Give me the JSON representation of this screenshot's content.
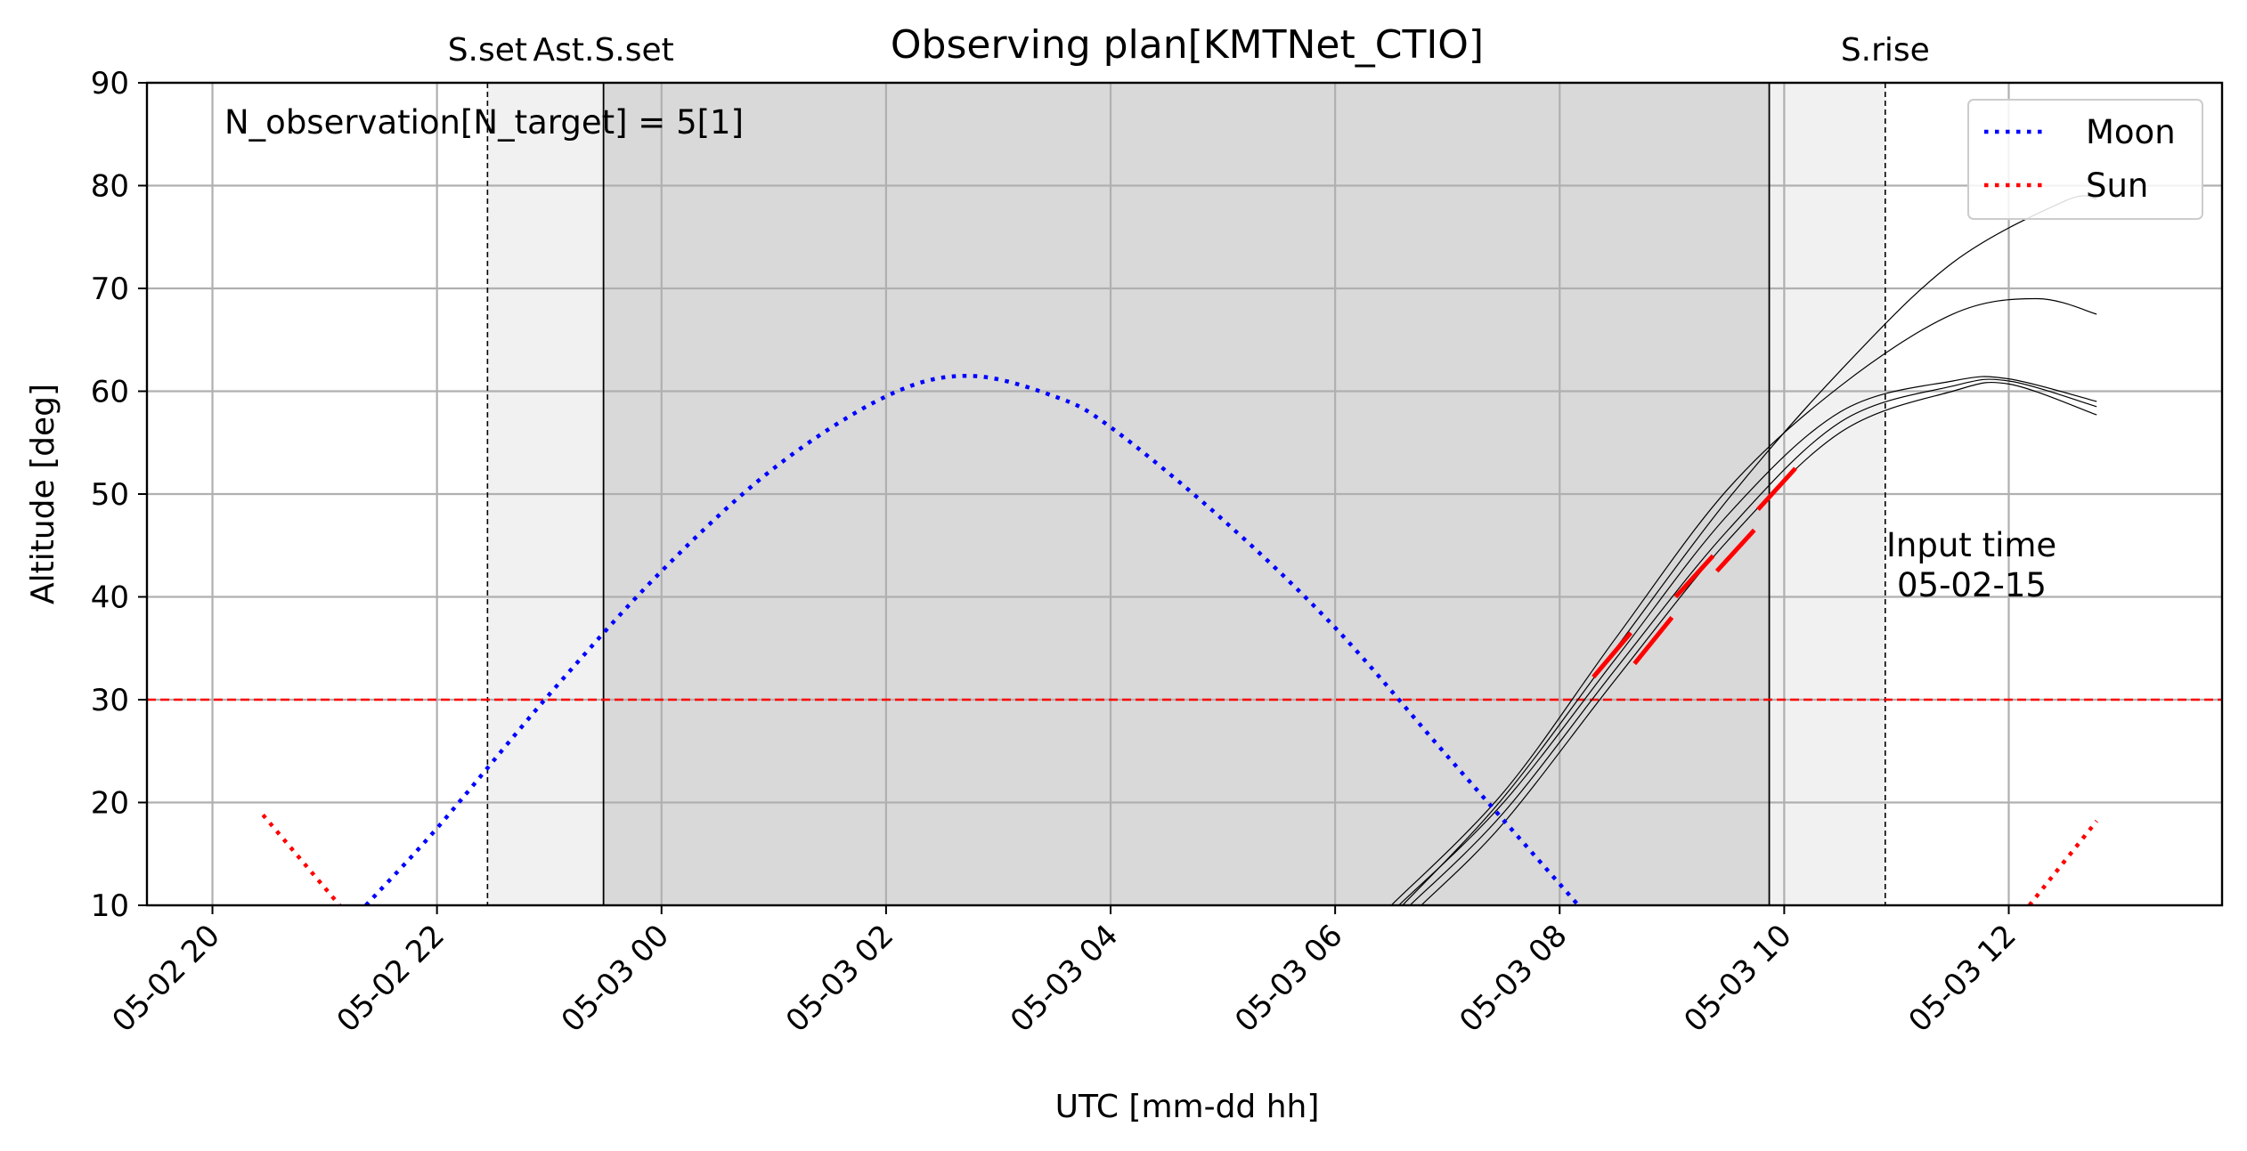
{
  "chart_data": {
    "type": "line",
    "title": "Observing plan[KMTNet_CTIO]",
    "xlabel": "UTC [mm-dd hh]",
    "ylabel": "Altitude [deg]",
    "xlim": [
      "05-02 19:25",
      "05-03 13:54"
    ],
    "ylim": [
      10,
      90
    ],
    "x_ticks": [
      {
        "time": "05-02 20:00",
        "label": "05-02 20"
      },
      {
        "time": "05-02 22:00",
        "label": "05-02 22"
      },
      {
        "time": "05-03 00:00",
        "label": "05-03 00"
      },
      {
        "time": "05-03 02:00",
        "label": "05-03 02"
      },
      {
        "time": "05-03 04:00",
        "label": "05-03 04"
      },
      {
        "time": "05-03 06:00",
        "label": "05-03 06"
      },
      {
        "time": "05-03 08:00",
        "label": "05-03 08"
      },
      {
        "time": "05-03 10:00",
        "label": "05-03 10"
      },
      {
        "time": "05-03 12:00",
        "label": "05-03 12"
      }
    ],
    "y_ticks": [
      10,
      20,
      30,
      40,
      50,
      60,
      70,
      80,
      90
    ],
    "grid": true,
    "legend_position": "top-right",
    "annotation": "N_observation[N_target] = 5[1]",
    "input_time": {
      "label": "Input time",
      "value": "05-02-15"
    },
    "events": [
      {
        "label": "S.set",
        "time": "05-02 22:27",
        "style": "dashed"
      },
      {
        "label": "Ast.S.set",
        "time": "05-02 23:29",
        "style": "solid"
      },
      {
        "label": "",
        "time": "05-03 09:52",
        "style": "solid"
      },
      {
        "label": "S.rise",
        "time": "05-03 10:54",
        "style": "dashed"
      }
    ],
    "shading": [
      {
        "from": "05-02 22:27",
        "to": "05-02 23:29",
        "tone": "light"
      },
      {
        "from": "05-02 23:29",
        "to": "05-03 09:52",
        "tone": "dark"
      },
      {
        "from": "05-03 09:52",
        "to": "05-03 10:54",
        "tone": "light"
      }
    ],
    "altitude_limit": {
      "value": 30,
      "color": "#ff0000",
      "style": "dashed"
    },
    "series": [
      {
        "name": "Moon",
        "color": "#0000ff",
        "style": "dotted",
        "points": [
          [
            "05-02 21:22",
            10
          ],
          [
            "05-02 22:00",
            17.5
          ],
          [
            "05-02 23:00",
            30.5
          ],
          [
            "05-03 00:00",
            42.5
          ],
          [
            "05-03 01:00",
            52.5
          ],
          [
            "05-03 02:00",
            59.5
          ],
          [
            "05-03 02:44",
            61.5
          ],
          [
            "05-03 03:30",
            59.5
          ],
          [
            "05-03 04:00",
            56.5
          ],
          [
            "05-03 05:00",
            47.5
          ],
          [
            "05-03 06:00",
            37
          ],
          [
            "05-03 07:00",
            24.5
          ],
          [
            "05-03 08:10",
            10
          ]
        ]
      },
      {
        "name": "Sun",
        "color": "#ff0000",
        "style": "dotted",
        "segments": [
          [
            [
              "05-02 20:27",
              18.8
            ],
            [
              "05-02 21:08",
              10
            ]
          ],
          [
            [
              "05-03 12:11",
              10
            ],
            [
              "05-03 12:47",
              18.2
            ]
          ]
        ]
      }
    ],
    "target_tracks": [
      {
        "color": "#000000",
        "points": [
          [
            "05-03 06:34",
            10
          ],
          [
            "05-03 07:30",
            20
          ],
          [
            "05-03 08:30",
            34
          ],
          [
            "05-03 09:30",
            48
          ],
          [
            "05-03 10:30",
            58
          ],
          [
            "05-03 11:30",
            61
          ],
          [
            "05-03 12:00",
            61.2
          ],
          [
            "05-03 12:47",
            59
          ]
        ]
      },
      {
        "color": "#000000",
        "points": [
          [
            "05-03 06:40",
            10
          ],
          [
            "05-03 07:30",
            19
          ],
          [
            "05-03 08:30",
            33
          ],
          [
            "05-03 09:30",
            46.5
          ],
          [
            "05-03 10:30",
            57
          ],
          [
            "05-03 11:30",
            60.5
          ],
          [
            "05-03 12:00",
            61
          ],
          [
            "05-03 12:47",
            58.5
          ]
        ]
      },
      {
        "color": "#000000",
        "points": [
          [
            "05-03 06:46",
            10
          ],
          [
            "05-03 07:30",
            18
          ],
          [
            "05-03 08:30",
            32
          ],
          [
            "05-03 09:30",
            45.5
          ],
          [
            "05-03 10:30",
            56
          ],
          [
            "05-03 11:30",
            60
          ],
          [
            "05-03 12:00",
            60.7
          ],
          [
            "05-03 12:47",
            57.7
          ]
        ]
      },
      {
        "color": "#000000",
        "points": [
          [
            "05-03 06:30",
            10
          ],
          [
            "05-03 07:30",
            21
          ],
          [
            "05-03 08:30",
            36
          ],
          [
            "05-03 09:30",
            50.5
          ],
          [
            "05-03 10:30",
            60.5
          ],
          [
            "05-03 11:30",
            67.5
          ],
          [
            "05-03 12:15",
            69
          ],
          [
            "05-03 12:47",
            67.5
          ]
        ]
      },
      {
        "color": "#000000",
        "points": [
          [
            "05-03 06:36",
            10
          ],
          [
            "05-03 07:30",
            20.5
          ],
          [
            "05-03 08:30",
            35
          ],
          [
            "05-03 09:30",
            49.5
          ],
          [
            "05-03 10:30",
            62
          ],
          [
            "05-03 11:30",
            72.5
          ],
          [
            "05-03 12:30",
            78.5
          ],
          [
            "05-03 12:47",
            78.7
          ]
        ]
      }
    ],
    "observation_windows": [
      {
        "color": "#ff0000",
        "from": [
          "05-03 08:18",
          32.2
        ],
        "to": [
          "05-03 08:38",
          36.5
        ]
      },
      {
        "color": "#ff0000",
        "from": [
          "05-03 08:40",
          33.5
        ],
        "to": [
          "05-03 09:00",
          38
        ]
      },
      {
        "color": "#ff0000",
        "from": [
          "05-03 09:02",
          40
        ],
        "to": [
          "05-03 09:22",
          44
        ]
      },
      {
        "color": "#ff0000",
        "from": [
          "05-03 09:24",
          42.5
        ],
        "to": [
          "05-03 09:44",
          46.5
        ]
      },
      {
        "color": "#ff0000",
        "from": [
          "05-03 09:46",
          48.5
        ],
        "to": [
          "05-03 10:06",
          52.5
        ]
      }
    ]
  }
}
